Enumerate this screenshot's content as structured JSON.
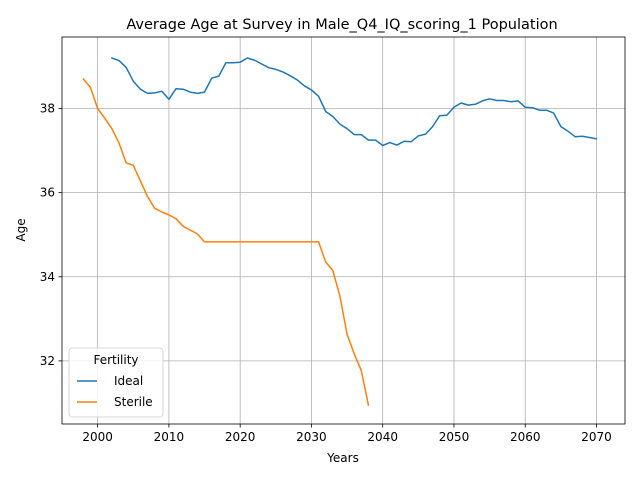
{
  "chart_data": {
    "type": "line",
    "title": "Average Age at Survey in Male_Q4_IQ_scoring_1 Population",
    "xlabel": "Years",
    "ylabel": "Age",
    "xlim": [
      1995,
      2074
    ],
    "ylim": [
      30.5,
      39.7
    ],
    "xticks": [
      2000,
      2010,
      2020,
      2030,
      2040,
      2050,
      2060,
      2070
    ],
    "yticks": [
      32,
      34,
      36,
      38
    ],
    "grid": true,
    "legend": {
      "title": "Fertility",
      "placement": "lower-left"
    },
    "series": [
      {
        "name": "Ideal",
        "color": "#1f77b4",
        "x": [
          2002,
          2003,
          2004,
          2005,
          2006,
          2007,
          2008,
          2009,
          2010,
          2011,
          2012,
          2013,
          2014,
          2015,
          2016,
          2017,
          2018,
          2019,
          2020,
          2021,
          2022,
          2023,
          2024,
          2025,
          2026,
          2027,
          2028,
          2029,
          2030,
          2031,
          2032,
          2033,
          2034,
          2035,
          2036,
          2037,
          2038,
          2039,
          2040,
          2041,
          2042,
          2043,
          2044,
          2045,
          2046,
          2047,
          2048,
          2049,
          2050,
          2051,
          2052,
          2053,
          2054,
          2055,
          2056,
          2057,
          2058,
          2059,
          2060,
          2061,
          2062,
          2063,
          2064,
          2065,
          2066,
          2067,
          2068,
          2069,
          2070
        ],
        "y": [
          39.2,
          39.14,
          38.98,
          38.65,
          38.46,
          38.36,
          38.37,
          38.41,
          38.22,
          38.47,
          38.46,
          38.39,
          38.36,
          38.39,
          38.72,
          38.77,
          39.09,
          39.09,
          39.1,
          39.2,
          39.15,
          39.06,
          38.97,
          38.93,
          38.87,
          38.78,
          38.68,
          38.54,
          38.44,
          38.29,
          37.93,
          37.81,
          37.63,
          37.52,
          37.38,
          37.38,
          37.25,
          37.25,
          37.12,
          37.19,
          37.13,
          37.22,
          37.21,
          37.35,
          37.39,
          37.57,
          37.83,
          37.84,
          38.03,
          38.13,
          38.08,
          38.1,
          38.18,
          38.23,
          38.19,
          38.19,
          38.16,
          38.18,
          38.03,
          38.02,
          37.96,
          37.96,
          37.89,
          37.57,
          37.46,
          37.33,
          37.34,
          37.31,
          37.28
        ]
      },
      {
        "name": "Sterile",
        "color": "#ff7f0e",
        "x": [
          1998,
          1999,
          2000,
          2001,
          2002,
          2003,
          2004,
          2005,
          2006,
          2007,
          2008,
          2009,
          2010,
          2011,
          2012,
          2013,
          2014,
          2015,
          2016,
          2017,
          2018,
          2019,
          2020,
          2021,
          2022,
          2023,
          2024,
          2025,
          2026,
          2027,
          2028,
          2029,
          2030,
          2031,
          2032,
          2033,
          2034,
          2035,
          2036,
          2037,
          2038
        ],
        "y": [
          38.7,
          38.5,
          38.0,
          37.77,
          37.52,
          37.18,
          36.71,
          36.65,
          36.28,
          35.91,
          35.63,
          35.54,
          35.47,
          35.38,
          35.2,
          35.11,
          35.02,
          34.83,
          34.83,
          34.83,
          34.83,
          34.83,
          34.83,
          34.83,
          34.83,
          34.83,
          34.83,
          34.83,
          34.83,
          34.83,
          34.83,
          34.83,
          34.83,
          34.83,
          34.35,
          34.15,
          33.54,
          32.63,
          32.17,
          31.77,
          30.95
        ]
      }
    ]
  }
}
